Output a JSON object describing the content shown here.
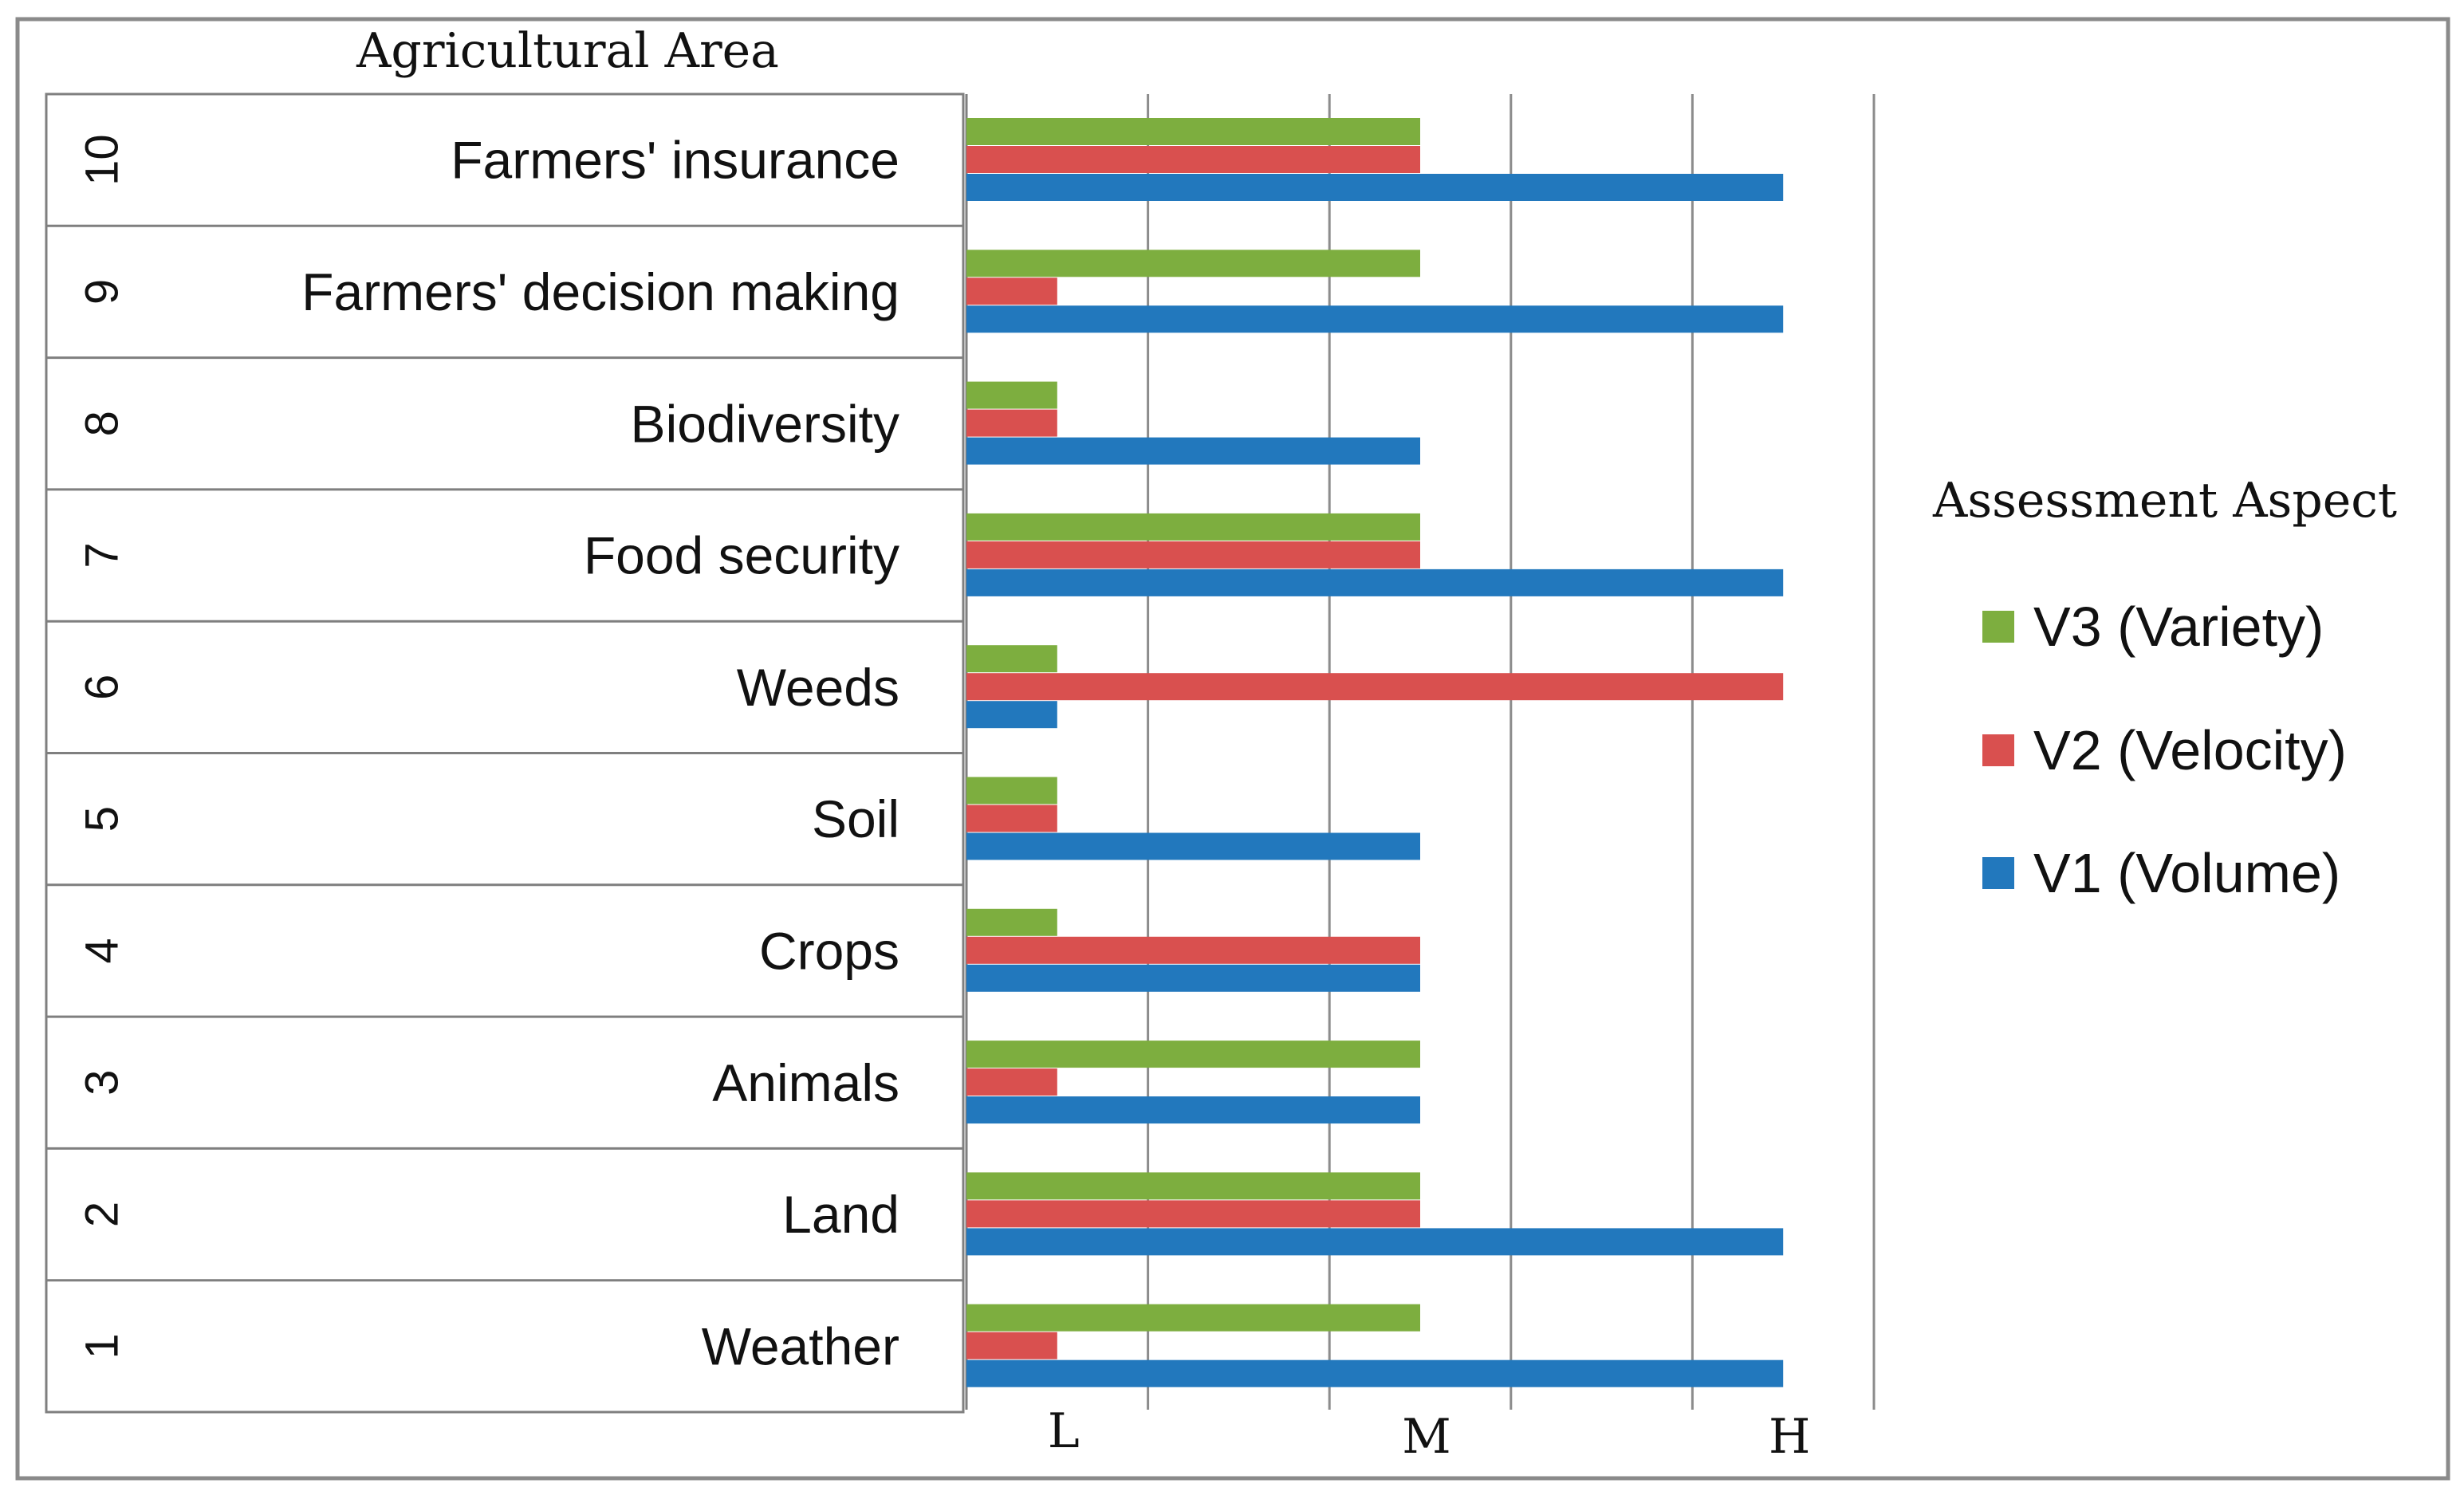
{
  "chart_data": {
    "type": "bar",
    "orientation": "horizontal",
    "row_header": "Agricultural Area",
    "rows": [
      {
        "index": "10",
        "label": "Farmers' insurance"
      },
      {
        "index": "9",
        "label": "Farmers' decision making"
      },
      {
        "index": "8",
        "label": "Biodiversity"
      },
      {
        "index": "7",
        "label": "Food  security"
      },
      {
        "index": "6",
        "label": "Weeds"
      },
      {
        "index": "5",
        "label": "Soil"
      },
      {
        "index": "4",
        "label": "Crops"
      },
      {
        "index": "3",
        "label": "Animals"
      },
      {
        "index": "2",
        "label": "Land"
      },
      {
        "index": "1",
        "label": "Weather"
      }
    ],
    "series": [
      {
        "name": "V3 (Variety)",
        "color": "#7dae3f",
        "values": [
          2.5,
          2.5,
          0.5,
          2.5,
          0.5,
          0.5,
          0.5,
          2.5,
          2.5,
          2.5
        ]
      },
      {
        "name": "V2 (Velocity)",
        "color": "#d9504f",
        "values": [
          2.5,
          0.5,
          0.5,
          2.5,
          4.5,
          0.5,
          2.5,
          0.5,
          2.5,
          0.5
        ]
      },
      {
        "name": "V1 (Volume)",
        "color": "#2278bd",
        "values": [
          4.5,
          4.5,
          2.5,
          4.5,
          0.5,
          2.5,
          2.5,
          2.5,
          4.5,
          4.5
        ]
      }
    ],
    "x_ticks": [
      {
        "label": "L",
        "value": 0.5
      },
      {
        "label": "M",
        "value": 2.5
      },
      {
        "label": "H",
        "value": 4.5
      }
    ],
    "xlim": [
      0,
      5
    ],
    "legend_title": "Assessment Aspect",
    "legend_order": [
      "V3 (Variety)",
      "V2 (Velocity)",
      "V1 (Volume)"
    ]
  }
}
